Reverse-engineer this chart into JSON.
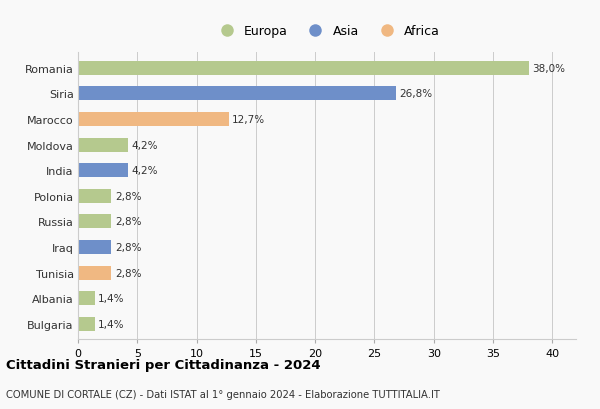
{
  "countries": [
    "Romania",
    "Siria",
    "Marocco",
    "Moldova",
    "India",
    "Polonia",
    "Russia",
    "Iraq",
    "Tunisia",
    "Albania",
    "Bulgaria"
  ],
  "values": [
    38.0,
    26.8,
    12.7,
    4.2,
    4.2,
    2.8,
    2.8,
    2.8,
    2.8,
    1.4,
    1.4
  ],
  "labels": [
    "38,0%",
    "26,8%",
    "12,7%",
    "4,2%",
    "4,2%",
    "2,8%",
    "2,8%",
    "2,8%",
    "2,8%",
    "1,4%",
    "1,4%"
  ],
  "colors": [
    "#b5c98e",
    "#6e8fc9",
    "#f0b882",
    "#b5c98e",
    "#6e8fc9",
    "#b5c98e",
    "#b5c98e",
    "#6e8fc9",
    "#f0b882",
    "#b5c98e",
    "#b5c98e"
  ],
  "legend_labels": [
    "Europa",
    "Asia",
    "Africa"
  ],
  "legend_colors": [
    "#b5c98e",
    "#6e8fc9",
    "#f0b882"
  ],
  "title": "Cittadini Stranieri per Cittadinanza - 2024",
  "subtitle": "COMUNE DI CORTALE (CZ) - Dati ISTAT al 1° gennaio 2024 - Elaborazione TUTTITALIA.IT",
  "xlim": [
    0,
    42
  ],
  "xticks": [
    0,
    5,
    10,
    15,
    20,
    25,
    30,
    35,
    40
  ],
  "background_color": "#f9f9f9",
  "grid_color": "#cccccc",
  "bar_height": 0.55
}
